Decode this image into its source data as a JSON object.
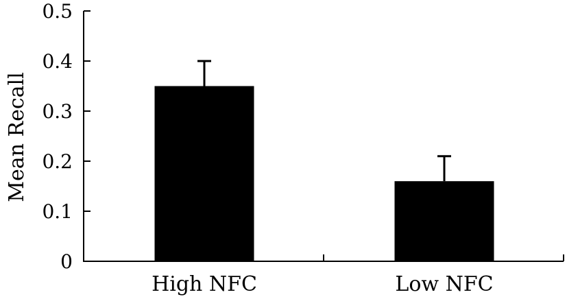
{
  "chart_data": {
    "type": "bar",
    "title": "",
    "xlabel": "",
    "ylabel": "Mean Recall",
    "ylim": [
      0,
      0.5
    ],
    "yticks": [
      "0",
      "0.1",
      "0.2",
      "0.3",
      "0.4",
      "0.5"
    ],
    "categories": [
      "High NFC",
      "Low NFC"
    ],
    "values": [
      0.35,
      0.16
    ],
    "error_upper": [
      0.05,
      0.05
    ],
    "bar_color": "#000000",
    "grid": false,
    "legend": "none"
  }
}
